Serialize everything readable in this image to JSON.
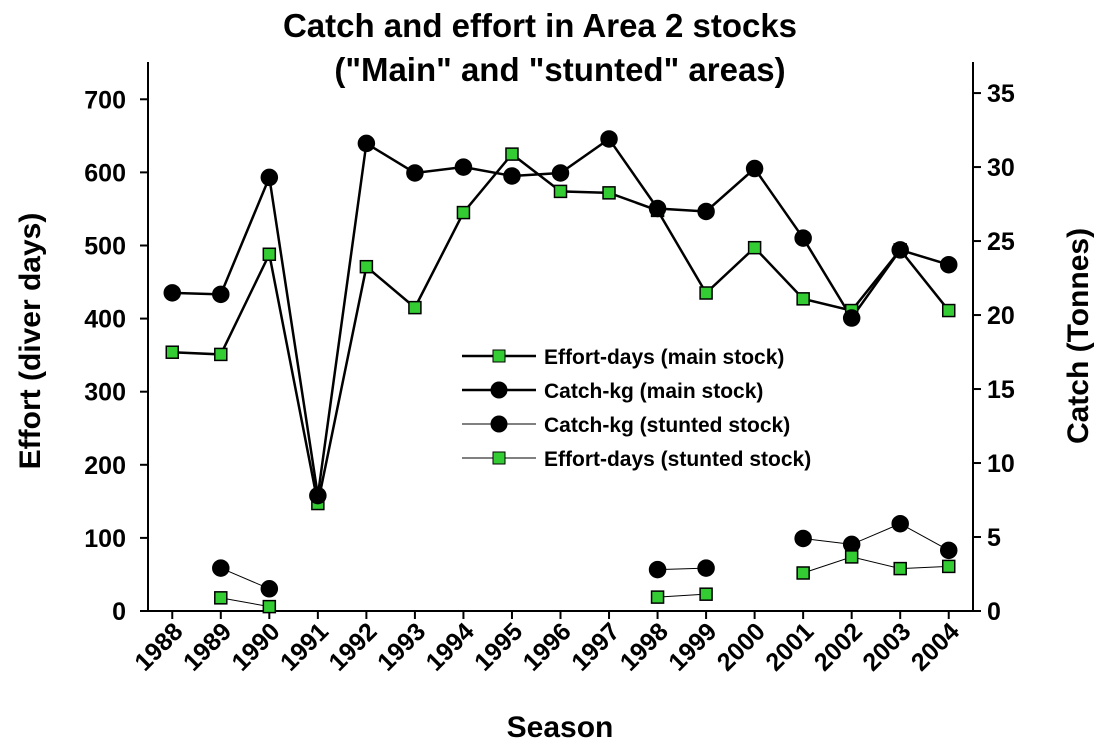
{
  "chart_data": {
    "type": "line",
    "title": [
      "Catch and effort in Area 2 stocks",
      "(\"Main\" and \"stunted\" areas)"
    ],
    "x_label": "Season",
    "y_label": "Effort (diver days)",
    "y2_label": "Catch (Tonnes)",
    "categories": [
      "1988",
      "1989",
      "1990",
      "1991",
      "1992",
      "1993",
      "1994",
      "1995",
      "1996",
      "1997",
      "1998",
      "1999",
      "2000",
      "2001",
      "2002",
      "2003",
      "2004"
    ],
    "ylim": [
      0,
      751
    ],
    "yticks": [
      0,
      100,
      200,
      300,
      400,
      500,
      600,
      700
    ],
    "y2lim": [
      0,
      37.1
    ],
    "y2ticks": [
      0,
      5,
      10,
      15,
      20,
      25,
      30,
      35
    ],
    "legend": "center-right",
    "series": [
      {
        "name": "Effort-days (main stock)",
        "color": "#33cc33",
        "marker": "square",
        "linewidth": 2.5,
        "axis": "y",
        "values": [
          354,
          351,
          488,
          147,
          471,
          415,
          545,
          625,
          574,
          572,
          548,
          435,
          497,
          427,
          411,
          494,
          411
        ]
      },
      {
        "name": "Catch-kg (main stock)",
        "color": "#000000",
        "marker": "circle",
        "linewidth": 2.5,
        "axis": "y2",
        "values": [
          21.5,
          21.4,
          29.3,
          7.8,
          31.6,
          29.6,
          30.0,
          29.4,
          29.6,
          31.9,
          27.2,
          27.0,
          29.9,
          25.2,
          19.8,
          24.4,
          23.4
        ]
      },
      {
        "name": "Catch-kg (stunted stock)",
        "color": "#000000",
        "marker": "circle",
        "linewidth": 1,
        "axis": "y2",
        "values": [
          null,
          2.9,
          1.5,
          null,
          null,
          null,
          null,
          null,
          null,
          null,
          2.8,
          2.9,
          null,
          4.9,
          4.5,
          5.9,
          4.1
        ]
      },
      {
        "name": "Effort-days (stunted stock)",
        "color": "#33cc33",
        "marker": "square",
        "linewidth": 1,
        "axis": "y",
        "values": [
          null,
          18,
          6,
          null,
          null,
          null,
          null,
          null,
          null,
          null,
          19,
          23,
          null,
          52,
          74,
          58,
          61
        ]
      }
    ]
  }
}
